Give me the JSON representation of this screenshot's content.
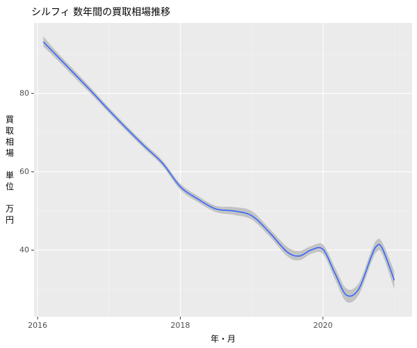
{
  "chart_data": {
    "type": "line",
    "title": "シルフィ 数年間の買取相場推移",
    "xlabel": "年・月",
    "ylabel": "買取相場 単位 万円",
    "ylabel_lines": [
      "買",
      "取",
      "相",
      "場",
      "",
      "単",
      "位",
      "",
      "万",
      "円"
    ],
    "x_tick_labels": [
      "2016",
      "2018",
      "2020"
    ],
    "y_tick_labels": [
      "40",
      "60",
      "80"
    ],
    "x_range": [
      2015.95,
      2021.25
    ],
    "ylim": [
      23,
      98
    ],
    "grid": true,
    "series": [
      {
        "color": "#3366FF",
        "band_color": "#BFBFBF",
        "points": [
          {
            "x": 2016.08,
            "y": 93.2,
            "lo": 92.0,
            "hi": 94.6
          },
          {
            "x": 2016.25,
            "y": 90.0,
            "lo": 89.0,
            "hi": 91.0
          },
          {
            "x": 2016.5,
            "y": 85.3,
            "lo": 84.4,
            "hi": 86.2
          },
          {
            "x": 2016.75,
            "y": 80.6,
            "lo": 79.8,
            "hi": 81.4
          },
          {
            "x": 2017.0,
            "y": 75.7,
            "lo": 75.0,
            "hi": 76.4
          },
          {
            "x": 2017.25,
            "y": 71.0,
            "lo": 70.3,
            "hi": 71.7
          },
          {
            "x": 2017.5,
            "y": 66.5,
            "lo": 65.8,
            "hi": 67.2
          },
          {
            "x": 2017.75,
            "y": 62.2,
            "lo": 61.5,
            "hi": 62.9
          },
          {
            "x": 2018.0,
            "y": 56.2,
            "lo": 55.4,
            "hi": 57.0
          },
          {
            "x": 2018.25,
            "y": 53.0,
            "lo": 52.2,
            "hi": 53.8
          },
          {
            "x": 2018.5,
            "y": 50.5,
            "lo": 49.7,
            "hi": 51.3
          },
          {
            "x": 2018.75,
            "y": 50.0,
            "lo": 49.0,
            "hi": 51.0
          },
          {
            "x": 2019.0,
            "y": 48.8,
            "lo": 47.8,
            "hi": 50.0
          },
          {
            "x": 2019.25,
            "y": 44.5,
            "lo": 43.5,
            "hi": 45.5
          },
          {
            "x": 2019.5,
            "y": 39.5,
            "lo": 38.4,
            "hi": 40.8
          },
          {
            "x": 2019.67,
            "y": 38.5,
            "lo": 37.4,
            "hi": 39.8
          },
          {
            "x": 2019.83,
            "y": 40.0,
            "lo": 39.0,
            "hi": 41.0
          },
          {
            "x": 2020.0,
            "y": 40.2,
            "lo": 39.0,
            "hi": 41.4
          },
          {
            "x": 2020.17,
            "y": 34.0,
            "lo": 32.5,
            "hi": 35.5
          },
          {
            "x": 2020.33,
            "y": 28.5,
            "lo": 26.8,
            "hi": 30.2
          },
          {
            "x": 2020.5,
            "y": 30.0,
            "lo": 28.5,
            "hi": 31.5
          },
          {
            "x": 2020.67,
            "y": 38.0,
            "lo": 36.5,
            "hi": 39.5
          },
          {
            "x": 2020.75,
            "y": 41.0,
            "lo": 39.5,
            "hi": 42.5
          },
          {
            "x": 2020.83,
            "y": 40.5,
            "lo": 39.0,
            "hi": 42.0
          },
          {
            "x": 2021.0,
            "y": 32.3,
            "lo": 30.0,
            "hi": 34.6
          }
        ]
      }
    ]
  }
}
